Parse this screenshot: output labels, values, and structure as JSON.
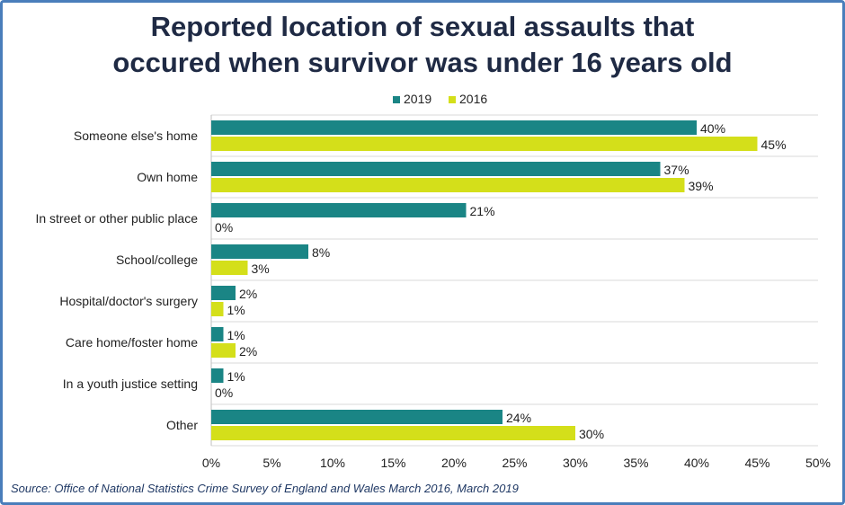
{
  "title_lines": [
    "Reported location of sexual assaults that",
    "occured when survivor was under 16 years old"
  ],
  "source": "Source: Office of National Statistics Crime Survey of England and Wales March 2016,  March 2019",
  "colors": {
    "s2019": "#1a8585",
    "s2016": "#d4df1a",
    "grid": "#d9d9d9",
    "frame": "#4a7ebb"
  },
  "chart_data": {
    "type": "bar",
    "orientation": "horizontal",
    "title": "Reported location of sexual assaults that occured when survivor was under 16 years old",
    "xlabel": "",
    "ylabel": "",
    "xlim": [
      0,
      50
    ],
    "xticks": [
      0,
      5,
      10,
      15,
      20,
      25,
      30,
      35,
      40,
      45,
      50
    ],
    "xtick_labels": [
      "0%",
      "5%",
      "10%",
      "15%",
      "20%",
      "25%",
      "30%",
      "35%",
      "40%",
      "45%",
      "50%"
    ],
    "legend_position": "top-center",
    "categories": [
      "Someone else's home",
      "Own home",
      "In street or other public place",
      "School/college",
      "Hospital/doctor's surgery",
      "Care home/foster home",
      "In a youth justice setting",
      "Other"
    ],
    "series": [
      {
        "name": "2019",
        "values": [
          40,
          37,
          21,
          8,
          2,
          1,
          1,
          24
        ],
        "labels": [
          "40%",
          "37%",
          "21%",
          "8%",
          "2%",
          "1%",
          "1%",
          "24%"
        ]
      },
      {
        "name": "2016",
        "values": [
          45,
          39,
          0,
          3,
          1,
          2,
          0,
          30
        ],
        "labels": [
          "45%",
          "39%",
          "0%",
          "3%",
          "1%",
          "2%",
          "0%",
          "30%"
        ]
      }
    ]
  }
}
